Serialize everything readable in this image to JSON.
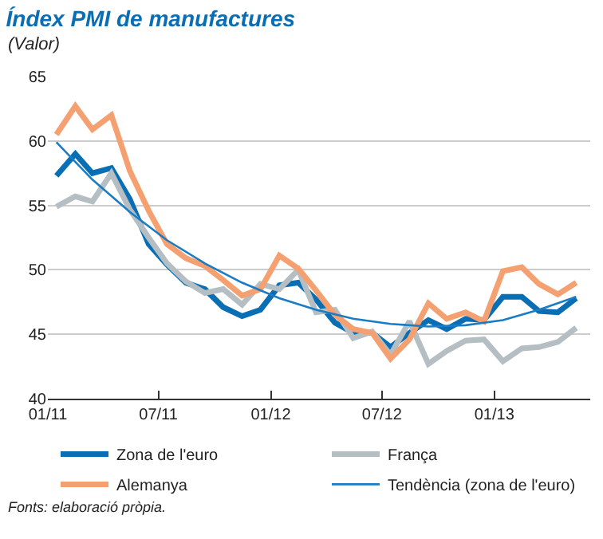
{
  "chart_data": {
    "type": "line",
    "title": "Índex PMI de manufactures",
    "subtitle": "(Valor)",
    "x": [
      "2011-01-15",
      "2011-02-15",
      "2011-03-15",
      "2011-04-15",
      "2011-05-15",
      "2011-06-15",
      "2011-07-15",
      "2011-08-15",
      "2011-09-15",
      "2011-10-15",
      "2011-11-15",
      "2011-12-15",
      "2012-01-15",
      "2012-02-15",
      "2012-03-15",
      "2012-04-15",
      "2012-05-15",
      "2012-06-15",
      "2012-07-15",
      "2012-08-15",
      "2012-09-15",
      "2012-10-15",
      "2012-11-15",
      "2012-12-15",
      "2013-01-15",
      "2013-02-15",
      "2013-03-15",
      "2013-04-15",
      "2013-05-15"
    ],
    "series": [
      {
        "name": "Zona de l'euro",
        "color": "#0a6eb4",
        "values": [
          57.3,
          59.0,
          57.5,
          57.9,
          55.5,
          52.0,
          50.4,
          49.0,
          48.5,
          47.1,
          46.4,
          46.9,
          48.8,
          49.0,
          47.7,
          45.9,
          45.1,
          45.1,
          44.0,
          45.1,
          46.1,
          45.4,
          46.2,
          46.1,
          47.9,
          47.9,
          46.8,
          46.7,
          47.8
        ]
      },
      {
        "name": "França",
        "color": "#b4bec3",
        "values": [
          54.9,
          55.7,
          55.3,
          57.5,
          54.7,
          52.5,
          50.5,
          49.1,
          48.2,
          48.5,
          47.3,
          48.9,
          48.5,
          50.0,
          46.7,
          46.9,
          44.7,
          45.2,
          43.4,
          46.0,
          42.7,
          43.7,
          44.5,
          44.6,
          42.9,
          43.9,
          44.0,
          44.4,
          45.5
        ]
      },
      {
        "name": "Alemanya",
        "color": "#f5a070",
        "values": [
          60.5,
          62.7,
          60.9,
          62.0,
          57.7,
          54.6,
          52.0,
          50.9,
          50.3,
          49.2,
          48.0,
          48.5,
          51.1,
          50.1,
          48.4,
          46.5,
          45.4,
          45.1,
          43.1,
          44.6,
          47.4,
          46.2,
          46.7,
          46.0,
          49.9,
          50.2,
          48.9,
          48.1,
          49.0
        ]
      },
      {
        "name": "Tendència (zona de l'euro)",
        "color": "#1a7cc4",
        "x": [
          "2011-01-15",
          "2011-03-15",
          "2011-05-15",
          "2011-07-15",
          "2011-09-15",
          "2011-11-15",
          "2012-01-15",
          "2012-03-15",
          "2012-05-15",
          "2012-07-15",
          "2012-09-15",
          "2012-11-15",
          "2013-01-15",
          "2013-03-15",
          "2013-05-15"
        ],
        "values": [
          59.9,
          57.0,
          54.5,
          52.3,
          50.5,
          49.0,
          47.8,
          46.9,
          46.2,
          45.8,
          45.6,
          45.7,
          46.1,
          46.9,
          47.9
        ]
      }
    ],
    "xlim": [
      "2011-01-01",
      "2013-06-07"
    ],
    "xticks": [
      {
        "value": "2011-01-01",
        "label": "01/11"
      },
      {
        "value": "2011-07-01",
        "label": "07/11"
      },
      {
        "value": "2012-01-01",
        "label": "01/12"
      },
      {
        "value": "2012-07-01",
        "label": "07/12"
      },
      {
        "value": "2013-01-01",
        "label": "01/13"
      }
    ],
    "ylim": [
      40,
      65
    ],
    "yticks": [
      40,
      45,
      50,
      55,
      60,
      65
    ],
    "grid": "y",
    "legend": "bottom",
    "marker": "none",
    "line_style": "solid",
    "annotations": [
      "Fonts: elaboració pròpia."
    ]
  }
}
